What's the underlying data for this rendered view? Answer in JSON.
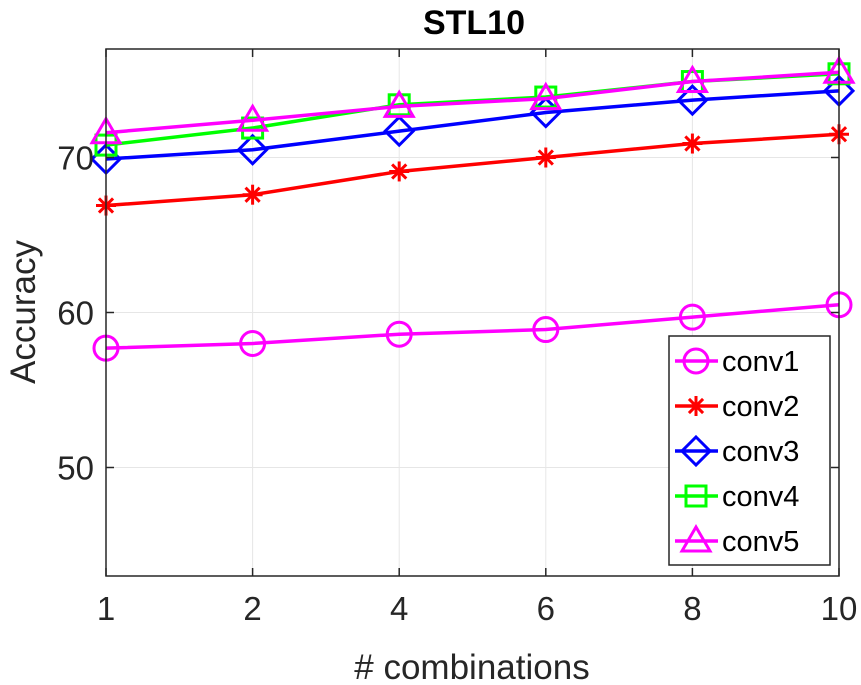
{
  "chart_data": {
    "type": "line",
    "title": "STL10",
    "xlabel": "# combinations",
    "ylabel": "Accuracy",
    "categories": [
      "1",
      "2",
      "4",
      "6",
      "8",
      "10"
    ],
    "ylim": [
      43,
      77
    ],
    "yticks": [
      50,
      60,
      70
    ],
    "grid": true,
    "legend_position": "bottom-right",
    "series": [
      {
        "name": "conv1",
        "color": "#ff00ff",
        "marker": "circle",
        "values": [
          57.7,
          58.0,
          58.6,
          58.9,
          59.7,
          60.5
        ]
      },
      {
        "name": "conv2",
        "color": "#ff0000",
        "marker": "star",
        "values": [
          66.9,
          67.6,
          69.1,
          70.0,
          70.9,
          71.5
        ]
      },
      {
        "name": "conv3",
        "color": "#0000ff",
        "marker": "diamond",
        "values": [
          69.9,
          70.5,
          71.7,
          72.9,
          73.7,
          74.3
        ]
      },
      {
        "name": "conv4",
        "color": "#00ff00",
        "marker": "square",
        "values": [
          70.8,
          71.9,
          73.4,
          73.9,
          74.9,
          75.4
        ]
      },
      {
        "name": "conv5",
        "color": "#ff00ff",
        "marker": "triangle",
        "values": [
          71.6,
          72.4,
          73.3,
          73.8,
          74.9,
          75.5
        ]
      }
    ]
  }
}
